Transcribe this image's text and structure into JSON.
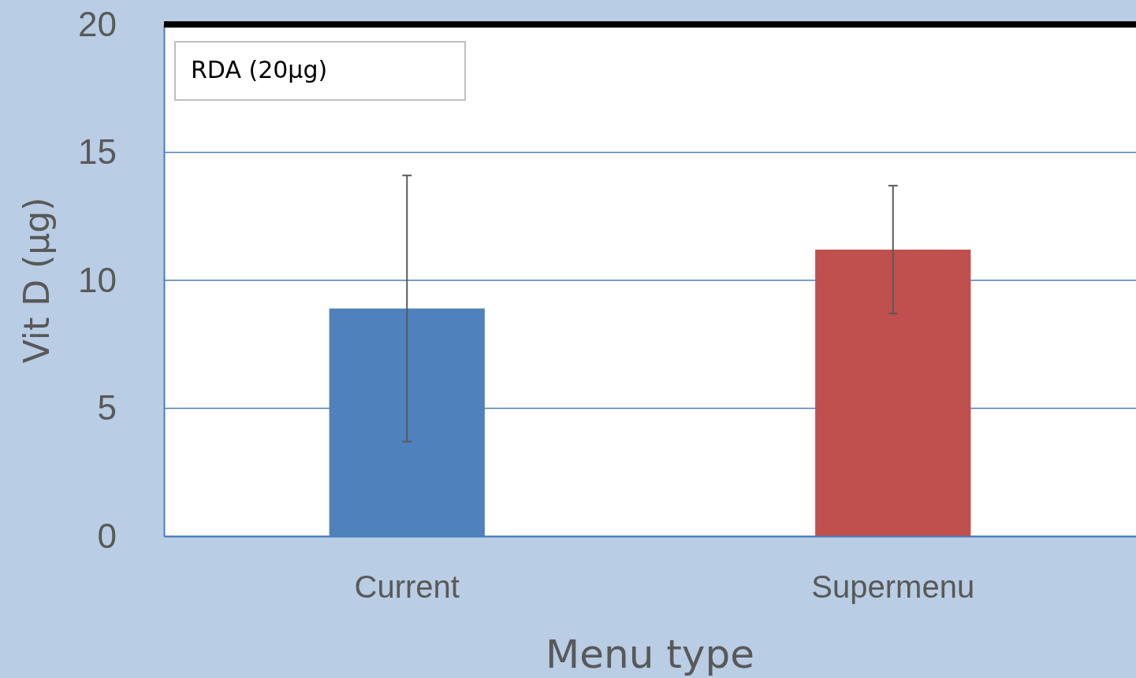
{
  "chart_data": {
    "type": "bar",
    "xlabel": "Menu type",
    "ylabel": "Vit D (µg)",
    "categories": [
      "Current",
      "Supermenu"
    ],
    "values": [
      8.9,
      11.2
    ],
    "colors": [
      "#4f81bd",
      "#c0504d"
    ],
    "errors": [
      5.2,
      2.5
    ],
    "ylim": [
      0,
      20
    ],
    "yticks": [
      0,
      5,
      10,
      15,
      20
    ],
    "grid": "y",
    "ref_lines": [
      {
        "axis": "y",
        "value": 20,
        "label": "RDA (20µg)",
        "color": "#000000"
      }
    ]
  }
}
